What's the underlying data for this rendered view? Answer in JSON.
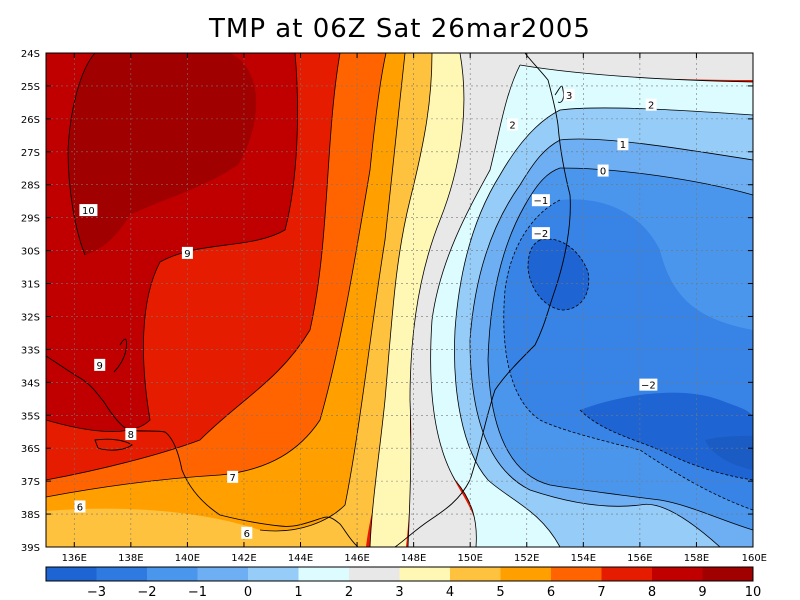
{
  "title": "TMP at 06Z Sat 26mar2005",
  "map": {
    "lat_ticks": [
      "24S",
      "25S",
      "26S",
      "27S",
      "28S",
      "29S",
      "30S",
      "31S",
      "32S",
      "33S",
      "34S",
      "35S",
      "36S",
      "37S",
      "38S",
      "39S"
    ],
    "lon_ticks": [
      "136E",
      "138E",
      "140E",
      "142E",
      "144E",
      "146E",
      "148E",
      "150E",
      "152E",
      "154E",
      "156E",
      "158E",
      "160E"
    ],
    "lon_range": [
      135,
      160
    ],
    "lat_range": [
      -39,
      -24
    ],
    "contour_labels": [
      {
        "text": "10",
        "lon": 136.5,
        "lat": -28.8
      },
      {
        "text": "9",
        "lon": 140.0,
        "lat": -30.1
      },
      {
        "text": "9",
        "lon": 136.9,
        "lat": -33.5
      },
      {
        "text": "8",
        "lon": 138.0,
        "lat": -35.6
      },
      {
        "text": "7",
        "lon": 141.6,
        "lat": -36.9
      },
      {
        "text": "6",
        "lon": 136.2,
        "lat": -37.8
      },
      {
        "text": "6",
        "lon": 142.1,
        "lat": -38.6
      },
      {
        "text": "3",
        "lon": 153.5,
        "lat": -25.3
      },
      {
        "text": "2",
        "lon": 151.5,
        "lat": -26.2
      },
      {
        "text": "2",
        "lon": 156.4,
        "lat": -25.6
      },
      {
        "text": "1",
        "lon": 155.4,
        "lat": -26.8
      },
      {
        "text": "0",
        "lon": 154.7,
        "lat": -27.6
      },
      {
        "text": "−1",
        "lon": 152.5,
        "lat": -28.5
      },
      {
        "text": "−2",
        "lon": 152.5,
        "lat": -29.5
      },
      {
        "text": "−2",
        "lon": 156.3,
        "lat": -34.1
      }
    ]
  },
  "colorbar": {
    "labels": [
      "−3",
      "−2",
      "−1",
      "0",
      "1",
      "2",
      "3",
      "4",
      "5",
      "6",
      "7",
      "8",
      "9",
      "10"
    ],
    "colors": [
      "#1e64d2",
      "#2e7ae0",
      "#4a96ec",
      "#6eaef2",
      "#96ccf8",
      "#dcfcff",
      "#e8e8e8",
      "#fff8b4",
      "#ffc23e",
      "#ffa000",
      "#ff6400",
      "#e61c00",
      "#c00000",
      "#a00000"
    ]
  },
  "band_colors": {
    "t_below_-2": "#1e64d2",
    "t_-2_-1": "#3884e6",
    "t_-1_0": "#4a96ec",
    "t_0_1": "#6eaef2",
    "t_1_2": "#96ccf8",
    "t_2_3": "#dcfcff",
    "t_3_4": "#e8e8e8",
    "t_4_5": "#fff8b4",
    "t_5_6": "#ffc23e",
    "t_6_7": "#ffa000",
    "t_7_8": "#ff6400",
    "t_8_9": "#e61c00",
    "t_9_10": "#c00000",
    "t_above_10": "#a00000"
  }
}
